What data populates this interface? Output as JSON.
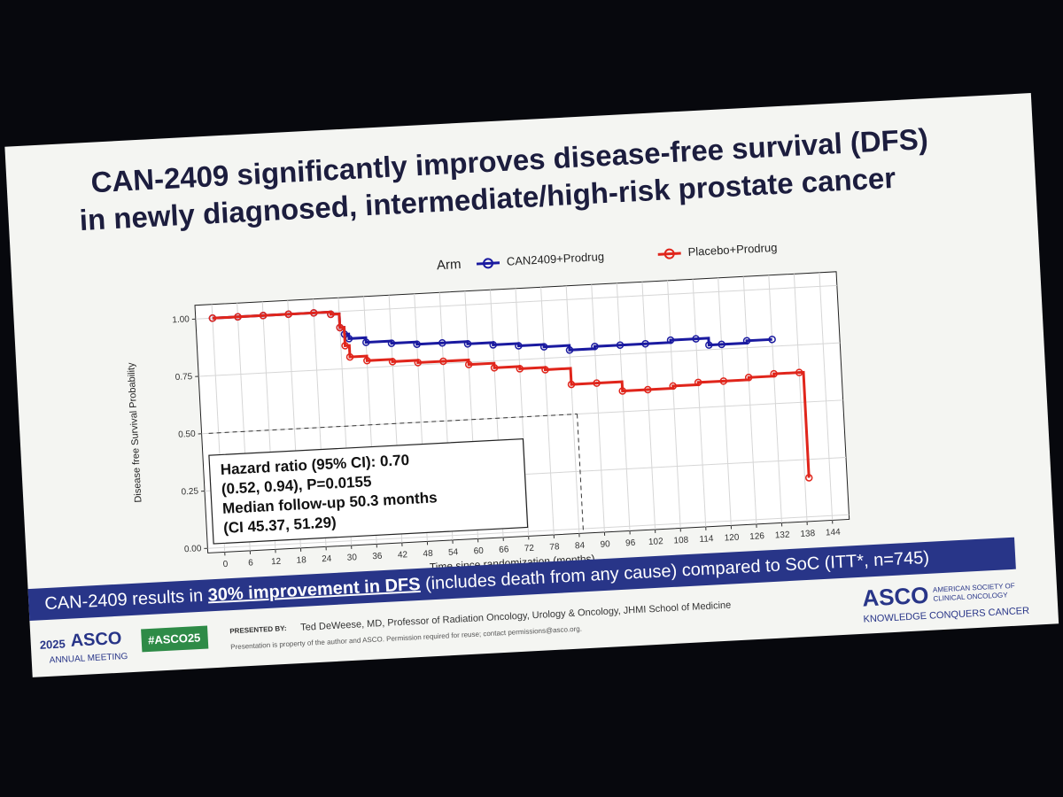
{
  "slide": {
    "title": [
      "CAN-2409 significantly improves disease-free survival (DFS)",
      "in newly diagnosed, intermediate/high-risk prostate cancer"
    ],
    "annotation": [
      "Hazard ratio (95% CI): 0.70",
      "(0.52, 0.94), P=0.0155",
      "Median follow-up 50.3 months",
      "(CI 45.37, 51.29)"
    ],
    "banner": [
      "CAN-2409 results in ",
      "30% improvement in DFS",
      " (includes death from any cause) compared to SoC (ITT*, n=745)"
    ],
    "footer": {
      "meeting_year": "2025",
      "meeting_org": "ASCO",
      "meeting": "ANNUAL MEETING",
      "hashtag": "#ASCO25",
      "presented_by": "PRESENTED BY:",
      "presenter": "Ted DeWeese, MD, Professor of Radiation Oncology, Urology & Oncology, JHMI School of Medicine",
      "notice": "Presentation is property of the author and ASCO. Permission required for reuse; contact permissions@asco.org.",
      "logo": "ASCO",
      "society": [
        "AMERICAN SOCIETY OF",
        "CLINICAL ONCOLOGY"
      ],
      "tagline": "KNOWLEDGE CONQUERS CANCER"
    }
  },
  "chart_data": {
    "type": "line",
    "step": true,
    "grid": true,
    "xlabel": "Time since randomization (months)",
    "ylabel": "Disease free Survival Probability",
    "legend_title": "Arm",
    "xlim": [
      -4,
      148
    ],
    "ylim": [
      -0.02,
      1.06
    ],
    "xticks": [
      0,
      6,
      12,
      18,
      24,
      30,
      36,
      42,
      48,
      54,
      60,
      66,
      72,
      78,
      84,
      90,
      96,
      102,
      108,
      114,
      120,
      126,
      132,
      138,
      144
    ],
    "yticks": [
      {
        "value": 0,
        "label": "0.00"
      },
      0.25,
      {
        "value": 0.5,
        "label": "0.50"
      },
      0.75,
      {
        "value": 1,
        "label": "1.00"
      }
    ],
    "median_reference": {
      "x": 85,
      "y": 0.5
    },
    "series": [
      {
        "name": "CAN2409+Prodrug",
        "color": "#1a1aa0",
        "x": [
          0,
          6,
          12,
          18,
          24,
          28,
          30,
          31,
          32,
          36,
          42,
          48,
          54,
          60,
          66,
          72,
          78,
          84,
          90,
          96,
          102,
          108,
          114,
          117,
          120,
          126,
          132
        ],
        "values": [
          1.0,
          1.0,
          1.0,
          1.0,
          1.0,
          0.99,
          0.93,
          0.9,
          0.88,
          0.86,
          0.85,
          0.84,
          0.84,
          0.83,
          0.82,
          0.81,
          0.8,
          0.78,
          0.79,
          0.79,
          0.79,
          0.8,
          0.8,
          0.77,
          0.77,
          0.78,
          0.78
        ]
      },
      {
        "name": "Placebo+Prodrug",
        "color": "#e0251b",
        "x": [
          0,
          6,
          12,
          18,
          24,
          28,
          30,
          31,
          32,
          36,
          42,
          48,
          54,
          60,
          66,
          72,
          78,
          84,
          90,
          96,
          102,
          108,
          114,
          120,
          126,
          132,
          138,
          139
        ],
        "values": [
          1.0,
          1.0,
          1.0,
          1.0,
          1.0,
          0.99,
          0.93,
          0.85,
          0.8,
          0.78,
          0.77,
          0.76,
          0.76,
          0.74,
          0.72,
          0.71,
          0.7,
          0.63,
          0.63,
          0.59,
          0.59,
          0.6,
          0.61,
          0.61,
          0.62,
          0.63,
          0.63,
          0.17
        ]
      }
    ]
  }
}
